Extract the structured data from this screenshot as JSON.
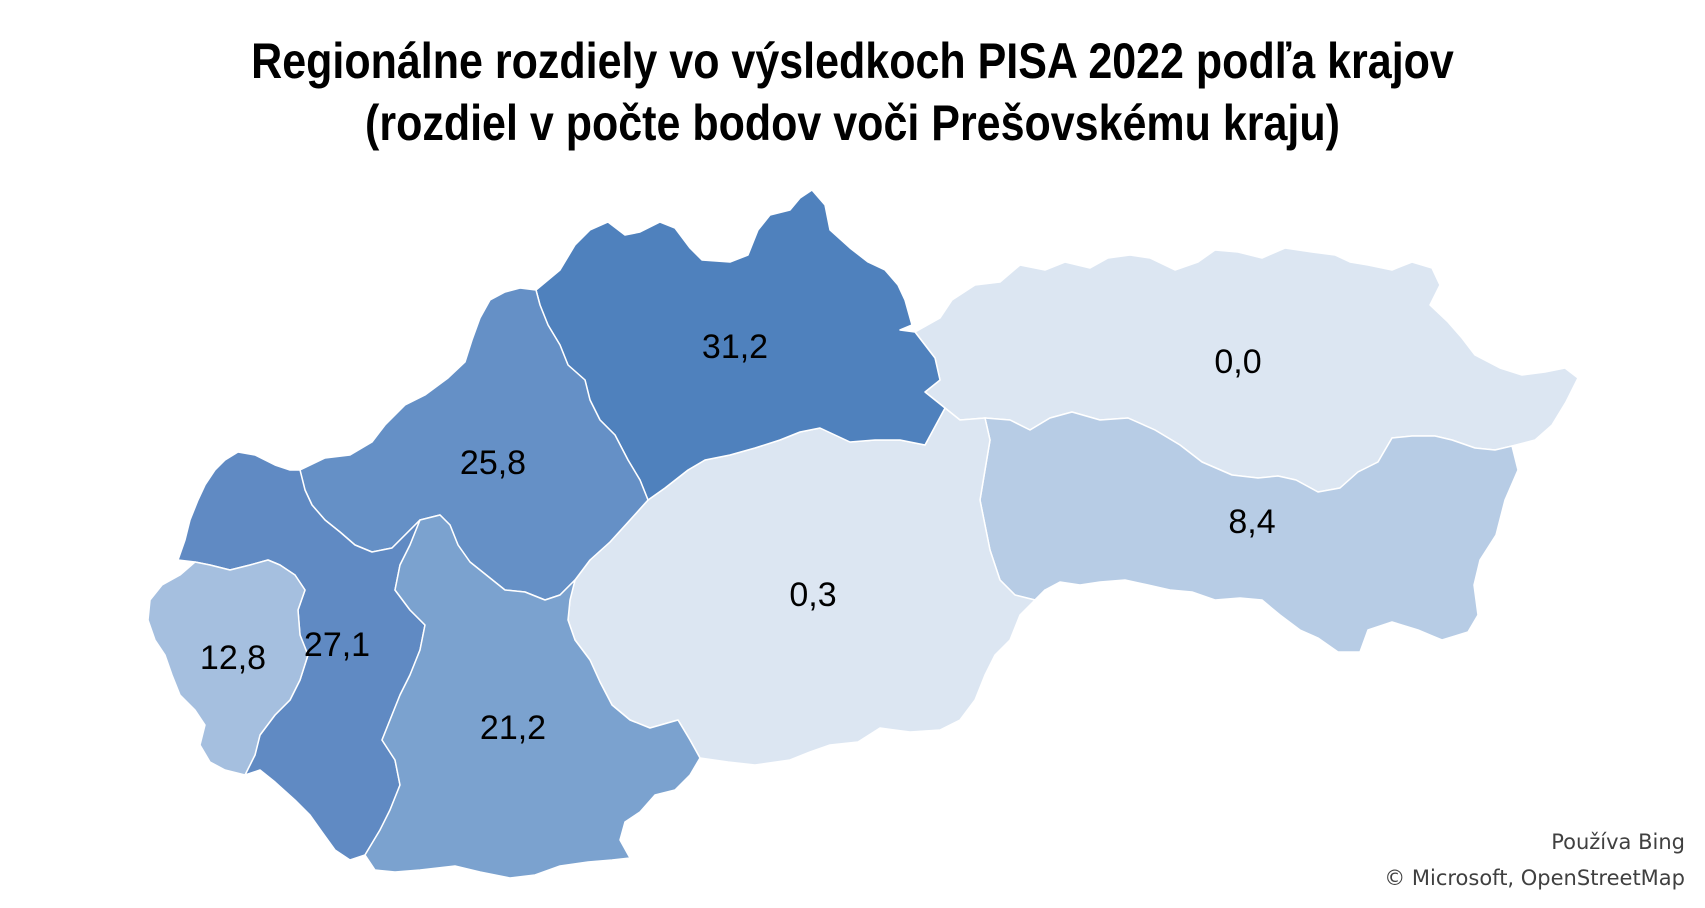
{
  "title": {
    "line1": "Regionálne rozdiely vo výsledkoch PISA 2022 podľa krajov",
    "line2": "(rozdiel v počte bodov voči Prešovskému kraju)"
  },
  "map": {
    "regions": [
      {
        "id": "zilinsky",
        "value": "31,2",
        "color": "#4f81bd"
      },
      {
        "id": "trenciansky",
        "value": "25,8",
        "color": "#6590c6"
      },
      {
        "id": "trnavsky",
        "value": "27,1",
        "color": "#608ac3"
      },
      {
        "id": "bratislavsky",
        "value": "12,8",
        "color": "#a5bfdf"
      },
      {
        "id": "nitriansky",
        "value": "21,2",
        "color": "#7ba2cf"
      },
      {
        "id": "banskobystricky",
        "value": "0,3",
        "color": "#dce6f2"
      },
      {
        "id": "presovsky",
        "value": "0,0",
        "color": "#dce6f2"
      },
      {
        "id": "kosicky",
        "value": "8,4",
        "color": "#b7cce5"
      }
    ]
  },
  "attribution": {
    "line1": "Používa Bing",
    "line2": "© Microsoft, OpenStreetMap"
  }
}
